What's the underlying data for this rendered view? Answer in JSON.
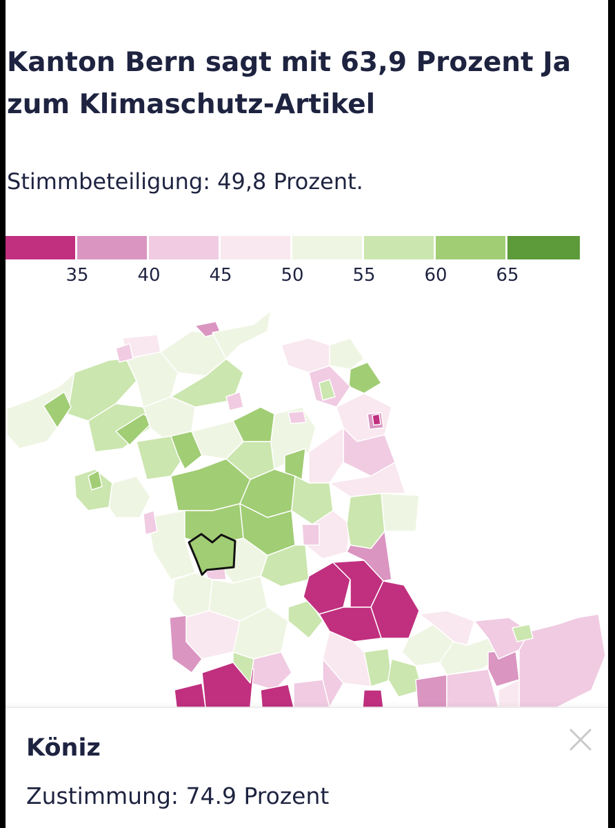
{
  "title": "Kanton Bern sagt mit 63,9 Prozent Ja zum Klimaschutz-Artikel",
  "subtitle": "Stimmbeteiligung: 49,8 Prozent.",
  "legend": {
    "colors": [
      "#c0307f",
      "#da95c1",
      "#f0cbe2",
      "#f9e8ef",
      "#eff5e3",
      "#cbe6ae",
      "#a1cd74",
      "#5c9a3a"
    ],
    "ticks": [
      "35",
      "40",
      "45",
      "50",
      "55",
      "60",
      "65"
    ]
  },
  "tooltip": {
    "name": "Köniz",
    "value_text": "Zustimmung: 74.9 Prozent",
    "close_icon": "close-icon"
  },
  "colors": {
    "text": "#1e2340",
    "close": "#c8c8c8"
  }
}
